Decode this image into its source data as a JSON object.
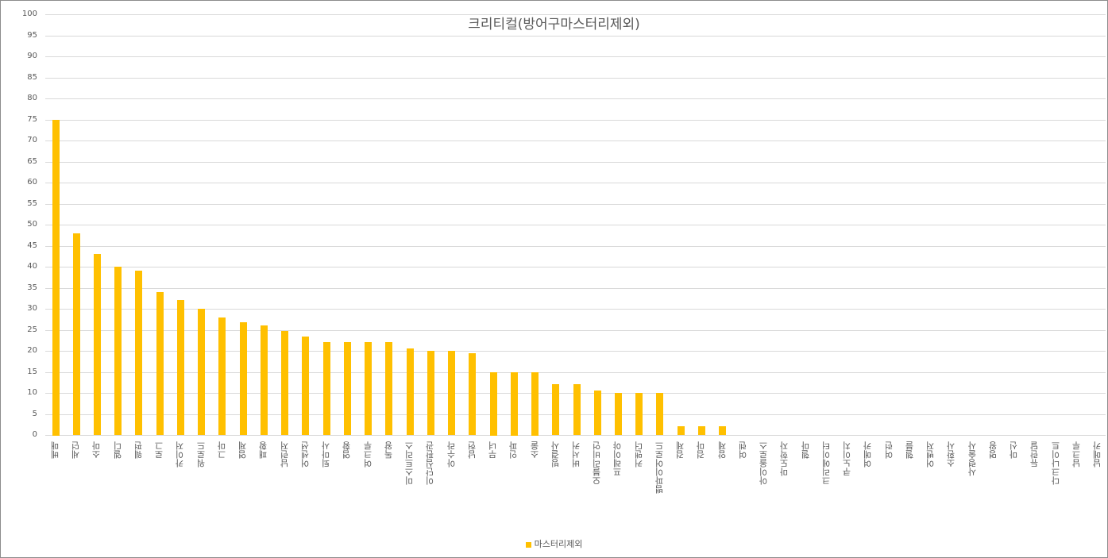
{
  "chart_data": {
    "type": "bar",
    "title": "크리티컬(방어구마스터리제외)",
    "xlabel": "",
    "ylabel": "",
    "ylim": [
      0,
      100
    ],
    "ytick_step": 5,
    "yticks": [
      "100",
      "95",
      "90",
      "85",
      "80",
      "75",
      "70",
      "65",
      "60",
      "55",
      "50",
      "45",
      "40",
      "35",
      "30",
      "25",
      "20",
      "15",
      "10",
      "5",
      "0"
    ],
    "grid": true,
    "legend_position": "bottom",
    "bar_color": "#ffc000",
    "categories": [
      "베매",
      "세던",
      "소마",
      "엘디",
      "웨펀",
      "로그",
      "카이저",
      "워로드",
      "그마",
      "염제",
      "패황",
      "남런저",
      "어센션",
      "퇴마사",
      "염황",
      "여크루",
      "독왕",
      "미스트리스",
      "이단심판관",
      "아수라",
      "남헌",
      "무녀",
      "인파",
      "소울",
      "빙결사",
      "버서커",
      "오블리비언",
      "프레이야",
      "커맨더",
      "뱀파이어로드",
      "검제",
      "검마",
      "암제",
      "여렌",
      "아이올로스",
      "마도학자",
      "헬마",
      "크리에이터",
      "쿠노이치",
      "여메카",
      "여런",
      "헬블",
      "어벤저",
      "소환사",
      "사령술사",
      "명왕",
      "마신",
      "듀란달",
      "다크나이트",
      "남크루",
      "남메카"
    ],
    "series": [
      {
        "name": "마스터리제외",
        "values": [
          75,
          48,
          43,
          40,
          39,
          34,
          32,
          30,
          28,
          26.7,
          26,
          24.7,
          23.4,
          22,
          22,
          22,
          22,
          20.6,
          20,
          20,
          19.5,
          15,
          15,
          15,
          12,
          12,
          10.6,
          10,
          10,
          10,
          2,
          2,
          2,
          0,
          0,
          0,
          0,
          0,
          0,
          0,
          0,
          0,
          0,
          0,
          0,
          0,
          0,
          0,
          0,
          0,
          0
        ]
      }
    ]
  },
  "legend": {
    "label": "마스터리제외"
  }
}
